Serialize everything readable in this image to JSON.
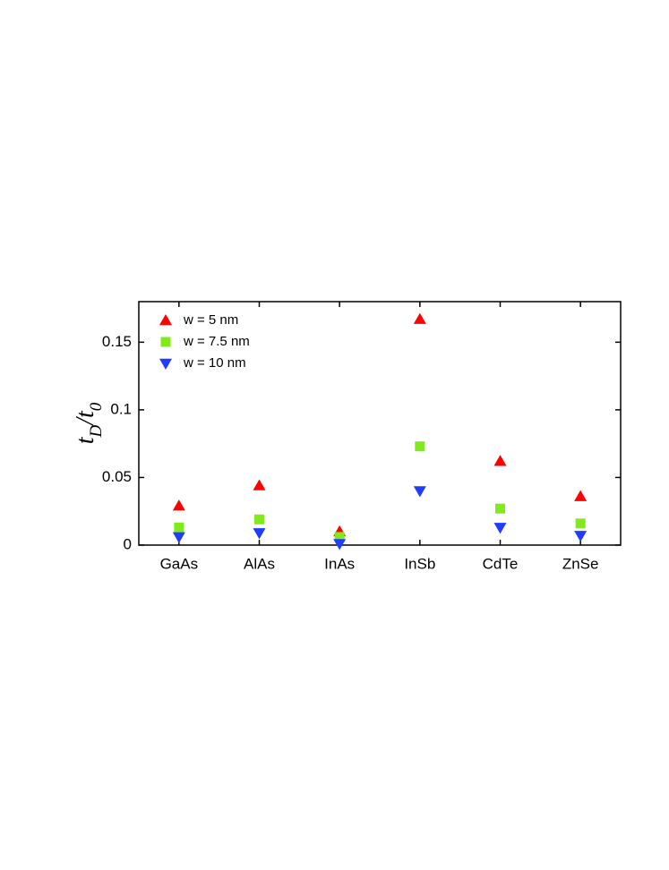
{
  "chart_data": {
    "type": "scatter",
    "ylabel": "t_D/t_0",
    "categories": [
      "GaAs",
      "AlAs",
      "InAs",
      "InSb",
      "CdTe",
      "ZnSe"
    ],
    "series": [
      {
        "name": "w = 5 nm",
        "color": "#ff0000",
        "marker": "triangle-up",
        "values": [
          0.029,
          0.044,
          0.01,
          0.167,
          0.062,
          0.036
        ]
      },
      {
        "name": "w = 7.5 nm",
        "color": "#80ea1a",
        "marker": "square",
        "values": [
          0.013,
          0.019,
          0.006,
          0.073,
          0.027,
          0.016
        ]
      },
      {
        "name": "w = 10 nm",
        "color": "#1f3cff",
        "marker": "triangle-down",
        "values": [
          0.006,
          0.009,
          0.001,
          0.04,
          0.013,
          0.007
        ]
      }
    ],
    "ylim": [
      0,
      0.18
    ],
    "yticks": [
      0,
      0.05,
      0.1,
      0.15
    ],
    "grid": false,
    "legend": "upper-left"
  }
}
